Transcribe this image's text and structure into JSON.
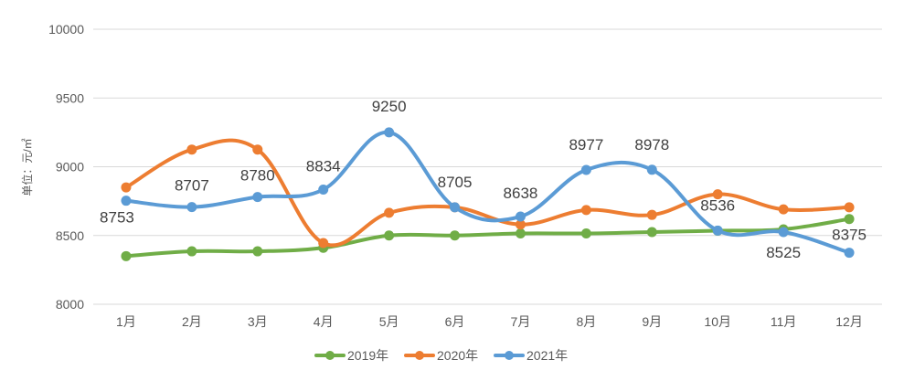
{
  "chart_data": {
    "type": "line",
    "title": "",
    "xlabel": "",
    "ylabel": "单位：元/㎡",
    "categories": [
      "1月",
      "2月",
      "3月",
      "4月",
      "5月",
      "6月",
      "7月",
      "8月",
      "9月",
      "10月",
      "11月",
      "12月"
    ],
    "ylim": [
      8000,
      10000
    ],
    "yticks": [
      8000,
      8500,
      9000,
      9500,
      10000
    ],
    "grid": true,
    "legend_position": "bottom",
    "smooth": true,
    "series": [
      {
        "name": "2019年",
        "color": "#70AD47",
        "values": [
          8350,
          8385,
          8385,
          8410,
          8500,
          8500,
          8515,
          8515,
          8525,
          8535,
          8545,
          8620
        ],
        "labels": [
          "",
          "",
          "",
          "",
          "",
          "",
          "",
          "",
          "",
          "",
          "",
          ""
        ]
      },
      {
        "name": "2020年",
        "color": "#ED7D31",
        "values": [
          8850,
          9125,
          9125,
          8445,
          8665,
          8705,
          8580,
          8685,
          8650,
          8800,
          8690,
          8705
        ],
        "labels": [
          "",
          "",
          "",
          "",
          "",
          "",
          "",
          "",
          "",
          "",
          "",
          ""
        ]
      },
      {
        "name": "2021年",
        "color": "#5B9BD5",
        "values": [
          8753,
          8707,
          8780,
          8834,
          9250,
          8705,
          8638,
          8977,
          8978,
          8536,
          8525,
          8375
        ],
        "labels": [
          "8753",
          "8707",
          "8780",
          "8834",
          "9250",
          "8705",
          "8638",
          "8977",
          "8978",
          "8536",
          "8525",
          "8375"
        ]
      }
    ]
  }
}
